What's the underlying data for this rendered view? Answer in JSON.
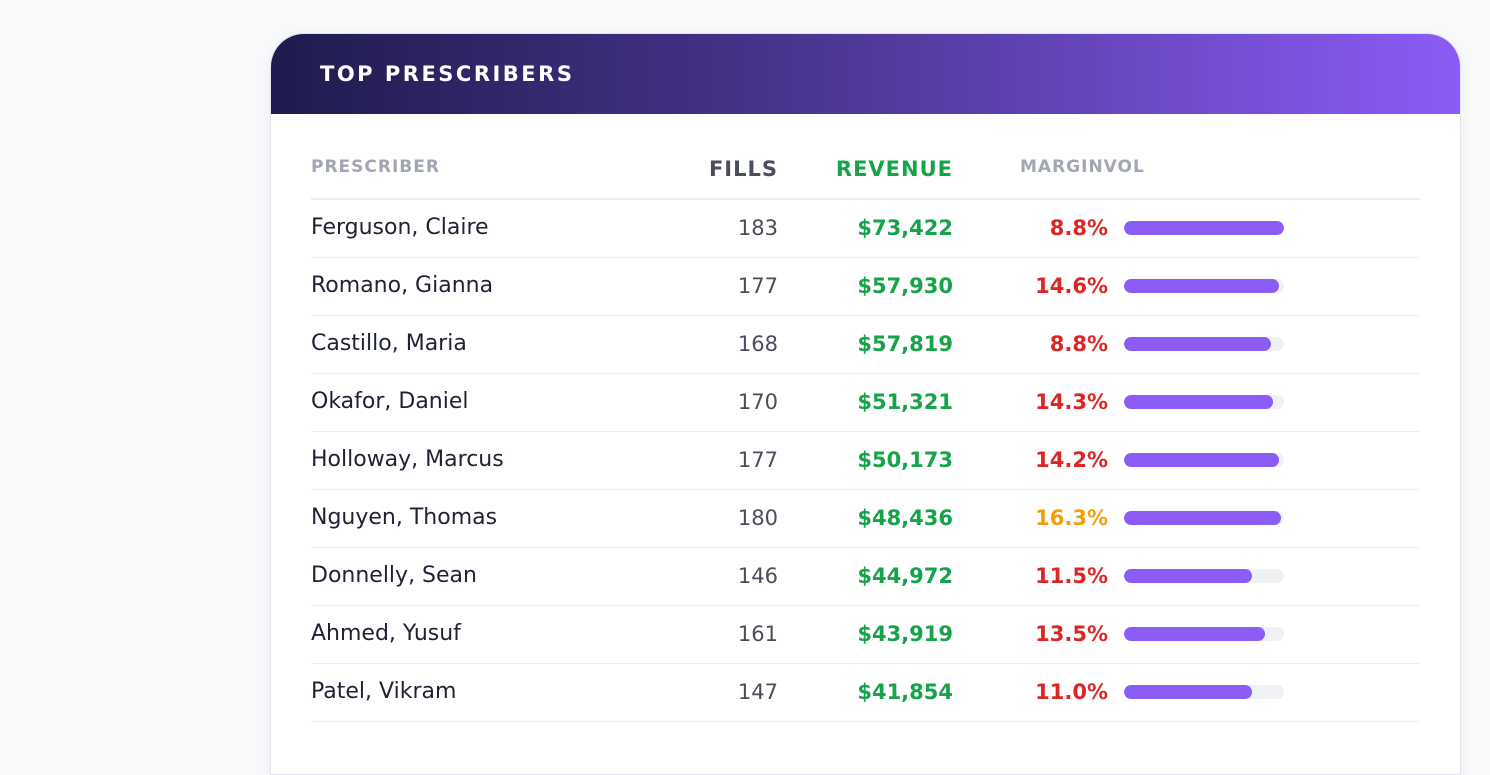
{
  "card": {
    "title": "TOP PRESCRIBERS"
  },
  "table": {
    "headers": {
      "prescriber": "PRESCRIBER",
      "fills": "FILLS",
      "revenue": "REVENUE",
      "marginvol": "MARGINVOL"
    },
    "rows": [
      {
        "name": "Ferguson, Claire",
        "fills": "183",
        "revenue": "$73,422",
        "margin": "8.8%",
        "margin_color": "#dc2626",
        "volume": 1.0
      },
      {
        "name": "Romano, Gianna",
        "fills": "177",
        "revenue": "$57,930",
        "margin": "14.6%",
        "margin_color": "#dc2626",
        "volume": 0.97
      },
      {
        "name": "Castillo, Maria",
        "fills": "168",
        "revenue": "$57,819",
        "margin": "8.8%",
        "margin_color": "#dc2626",
        "volume": 0.92
      },
      {
        "name": "Okafor, Daniel",
        "fills": "170",
        "revenue": "$51,321",
        "margin": "14.3%",
        "margin_color": "#dc2626",
        "volume": 0.93
      },
      {
        "name": "Holloway, Marcus",
        "fills": "177",
        "revenue": "$50,173",
        "margin": "14.2%",
        "margin_color": "#dc2626",
        "volume": 0.97
      },
      {
        "name": "Nguyen, Thomas",
        "fills": "180",
        "revenue": "$48,436",
        "margin": "16.3%",
        "margin_color": "#f59e0b",
        "volume": 0.98
      },
      {
        "name": "Donnelly, Sean",
        "fills": "146",
        "revenue": "$44,972",
        "margin": "11.5%",
        "margin_color": "#dc2626",
        "volume": 0.8
      },
      {
        "name": "Ahmed, Yusuf",
        "fills": "161",
        "revenue": "$43,919",
        "margin": "13.5%",
        "margin_color": "#dc2626",
        "volume": 0.88
      },
      {
        "name": "Patel, Vikram",
        "fills": "147",
        "revenue": "$41,854",
        "margin": "11.0%",
        "margin_color": "#dc2626",
        "volume": 0.8
      }
    ]
  },
  "colors": {
    "accent": "#8b5cf6",
    "revenue": "#16a34a",
    "margin_low": "#dc2626",
    "margin_mid": "#f59e0b"
  }
}
